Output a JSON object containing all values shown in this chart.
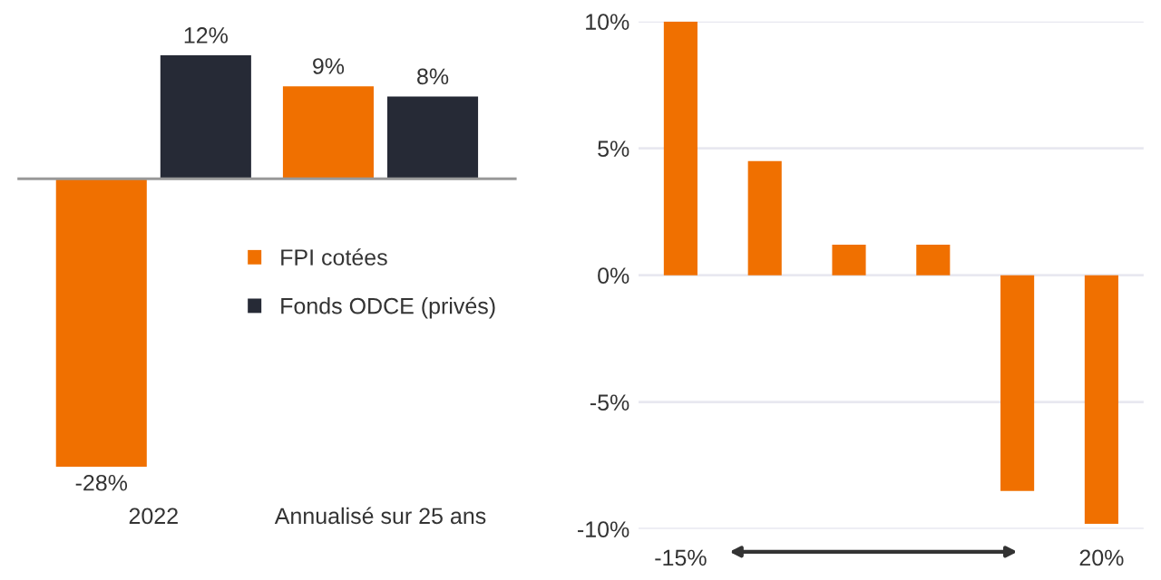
{
  "chart_data": [
    {
      "type": "bar",
      "categories": [
        "2022",
        "Annualisé sur 25 ans"
      ],
      "series": [
        {
          "name": "FPI cotées",
          "color": "#f07000",
          "values": [
            -28,
            9
          ],
          "value_labels": [
            "-28%",
            "9%"
          ]
        },
        {
          "name": "Fonds ODCE (privés)",
          "color": "#262a36",
          "values": [
            12,
            8
          ],
          "value_labels": [
            "12%",
            "8%"
          ]
        }
      ],
      "legend": "right",
      "grid": false
    },
    {
      "type": "bar",
      "categories": [
        "-15%",
        null,
        null,
        null,
        null,
        "20%"
      ],
      "series": [
        {
          "color": "#f07000",
          "values": [
            10,
            4.5,
            1.2,
            1.2,
            -8.5,
            -9.8
          ]
        }
      ],
      "ylim": [
        -10,
        10
      ],
      "yticks": [
        {
          "value": -10,
          "label": "-10%"
        },
        {
          "value": -5,
          "label": "-5%"
        },
        {
          "value": 0,
          "label": "0%"
        },
        {
          "value": 5,
          "label": "5%"
        },
        {
          "value": 10,
          "label": "10%"
        }
      ],
      "grid": "y"
    }
  ]
}
